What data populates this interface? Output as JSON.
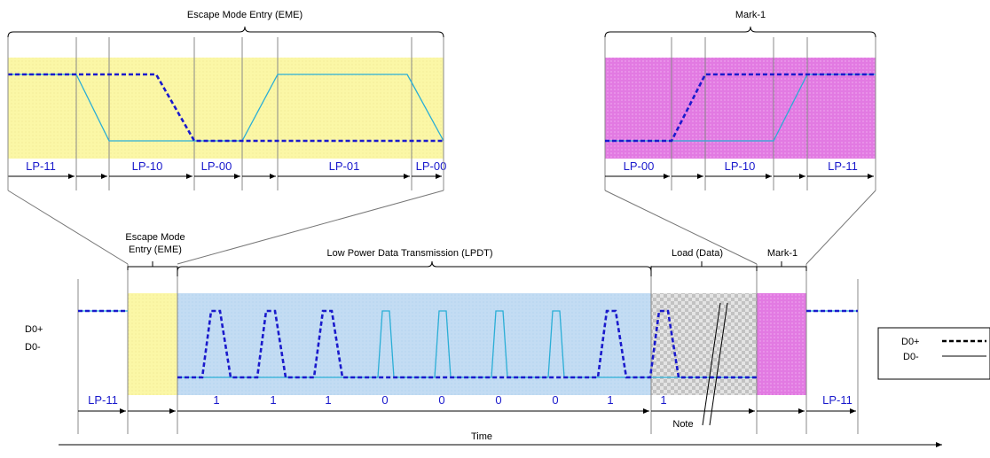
{
  "colors": {
    "dp": "#1a1acc",
    "dm": "#2aaed6",
    "eme_fill": "#fbf7a6",
    "mark_fill": "#e27ae2",
    "lpdt_fill": "#c3dcf3",
    "load_fill": "#d4d4d4"
  },
  "top_left": {
    "title": "Escape Mode Entry (EME)",
    "states": [
      "LP-11",
      "LP-10",
      "LP-00",
      "LP-01",
      "LP-00"
    ]
  },
  "top_right": {
    "title": "Mark-1",
    "states": [
      "LP-00",
      "LP-10",
      "LP-11"
    ]
  },
  "bottom": {
    "eme_label_line1": "Escape Mode",
    "eme_label_line2": "Entry (EME)",
    "lpdt_label": "Low Power Data Transmission (LPDT)",
    "load_label": "Load (Data)",
    "mark_label": "Mark-1",
    "signal_dp": "D0+",
    "signal_dm": "D0-",
    "states": {
      "left": "LP-11",
      "right": "LP-11"
    },
    "bits": [
      "1",
      "1",
      "1",
      "0",
      "0",
      "0",
      "0",
      "1",
      "1"
    ],
    "note": "Note",
    "time_label": "Time"
  },
  "legend": {
    "dp": "D0+",
    "dm": "D0-"
  }
}
